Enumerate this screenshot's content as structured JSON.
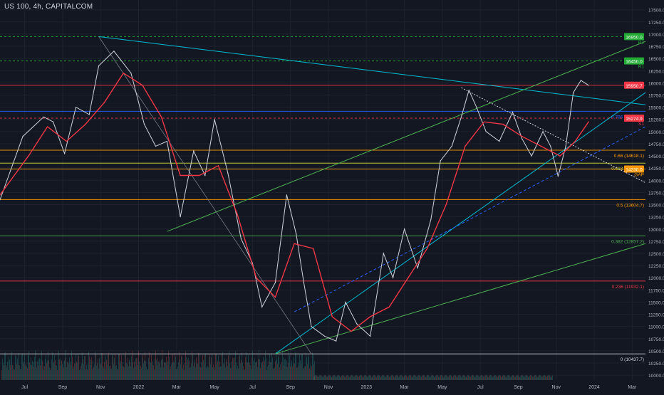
{
  "header": {
    "title": "US 100, 4h, CAPITALCOM"
  },
  "chart_data": {
    "type": "line",
    "title": "US 100, 4h, CAPITALCOM",
    "xlabel": "",
    "ylabel": "",
    "ylim": [
      9900,
      17700
    ],
    "x_ticks": [
      "Jul",
      "Sep",
      "Nov",
      "2022",
      "Mar",
      "May",
      "Jul",
      "Sep",
      "Nov",
      "2023",
      "Mar",
      "May",
      "Jul",
      "Sep",
      "Nov",
      "2024",
      "Mar"
    ],
    "y_ticks": [
      10000,
      10250,
      10500,
      10750,
      11000,
      11250,
      11500,
      11750,
      12000,
      12250,
      12500,
      12750,
      13000,
      13250,
      13500,
      13750,
      14000,
      14250,
      14500,
      14750,
      15000,
      15250,
      15500,
      15750,
      16000,
      16250,
      16500,
      16750,
      17000,
      17250,
      17500
    ],
    "y_tick_labels": [
      "10000.0",
      "10250.0",
      "10500.0",
      "10750.0",
      "11000.0",
      "11250.0",
      "11500.0",
      "11750.0",
      "12000.0",
      "12250.0",
      "12500.0",
      "12750.0",
      "13000.0",
      "13250.0",
      "13500.0",
      "13750.0",
      "14000.0",
      "14250.0",
      "14500.0",
      "14750.0",
      "15000.0",
      "15250.0",
      "15500.0",
      "15750.0",
      "16000.0",
      "16250.0",
      "16500.0",
      "16750.0",
      "17000.0",
      "17250.0",
      "17500.0"
    ],
    "x_range_months": [
      0,
      34
    ],
    "grid": true,
    "levels": [
      {
        "label": "R2",
        "value": 16950,
        "color": "#22ab34",
        "style": "dashed",
        "tag": "16950.0"
      },
      {
        "label": "R1",
        "value": 16450,
        "color": "#22ab34",
        "style": "dashed",
        "tag": "16450.0"
      },
      {
        "label": "",
        "value": 15950.7,
        "color": "#f23645",
        "style": "solid",
        "tag": "15950.7"
      },
      {
        "label": "0.786 (15416.1)",
        "value": 15416.1,
        "color": "#2962ff",
        "style": "solid",
        "tag": ""
      },
      {
        "label": "S1",
        "value": 15274.9,
        "color": "#f23645",
        "style": "dashed",
        "tag": "15274.9"
      },
      {
        "label": "0.66 (14618.1)",
        "value": 14618.1,
        "color": "#ff9800",
        "style": "solid",
        "tag": ""
      },
      {
        "label": "0.618 (14352.1)",
        "value": 14352.1,
        "color": "#cddc39",
        "style": "solid",
        "tag": ""
      },
      {
        "label": "GAP",
        "value": 14230,
        "color": "#ff9800",
        "style": "solid",
        "tag": "14230.0"
      },
      {
        "label": "0.5 (13604.7)",
        "value": 13604.7,
        "color": "#ff9800",
        "style": "solid",
        "tag": ""
      },
      {
        "label": "0.382 (12857.2)",
        "value": 12857.2,
        "color": "#4caf50",
        "style": "solid",
        "tag": ""
      },
      {
        "label": "0.236 (11932.1)",
        "value": 11932.1,
        "color": "#f23645",
        "style": "solid",
        "tag": ""
      },
      {
        "label": "0 (10437.7)",
        "value": 10437.7,
        "color": "#d1d4dc",
        "style": "solid",
        "tag": ""
      }
    ],
    "series": [
      {
        "name": "",
        "color": "#d1d4dc",
        "x": [
          0,
          1.2,
          2.3,
          2.8,
          3.4,
          4.0,
          4.7,
          5.2,
          6.0,
          6.9,
          7.6,
          8.2,
          8.8,
          9.5,
          10.2,
          10.8,
          11.3,
          12.0,
          12.7,
          13.3,
          13.8,
          14.5,
          15.1,
          15.6,
          16.0,
          16.4,
          17.1,
          17.7,
          18.2,
          18.8,
          19.5,
          20.2,
          20.7,
          21.3,
          22.0,
          22.7,
          23.2,
          23.8,
          24.3,
          24.7,
          25.1,
          25.6,
          26.3,
          27.0,
          27.5,
          28.0,
          28.6,
          29.0,
          29.4,
          29.8,
          30.2,
          30.6,
          31.0
        ],
        "values": [
          13600,
          14900,
          15300,
          15200,
          14550,
          15500,
          15350,
          16350,
          16650,
          16200,
          15150,
          14700,
          14800,
          13250,
          14600,
          14100,
          15250,
          14150,
          12800,
          12300,
          11400,
          11900,
          13700,
          12900,
          11900,
          11000,
          10800,
          10700,
          11500,
          11050,
          10800,
          12500,
          12000,
          13000,
          12200,
          13200,
          14400,
          14700,
          15300,
          15850,
          15500,
          15000,
          14800,
          15400,
          14850,
          14500,
          15000,
          14700,
          14080,
          14700,
          15800,
          16050,
          15950
        ]
      },
      {
        "name": "",
        "color": "#f23645",
        "x": [
          0,
          1.5,
          2.5,
          3.5,
          4.5,
          5.5,
          6.5,
          7.5,
          8.5,
          9.5,
          10.5,
          11.5,
          12.5,
          13.5,
          14.5,
          15.5,
          16.5,
          17.5,
          18.5,
          19.5,
          20.5,
          21.5,
          22.5,
          23.5,
          24.5,
          25.5,
          26.5,
          27.5,
          28.5,
          29.5,
          30.3,
          31.0
        ],
        "values": [
          13700,
          14500,
          15100,
          14800,
          15150,
          15600,
          16200,
          15950,
          15300,
          14100,
          14100,
          14300,
          13300,
          12000,
          11600,
          12700,
          12600,
          11200,
          10900,
          11200,
          11400,
          12000,
          12600,
          13500,
          14700,
          15200,
          15150,
          14900,
          14700,
          14500,
          14800,
          15200
        ]
      }
    ],
    "volume_max": 1
  }
}
